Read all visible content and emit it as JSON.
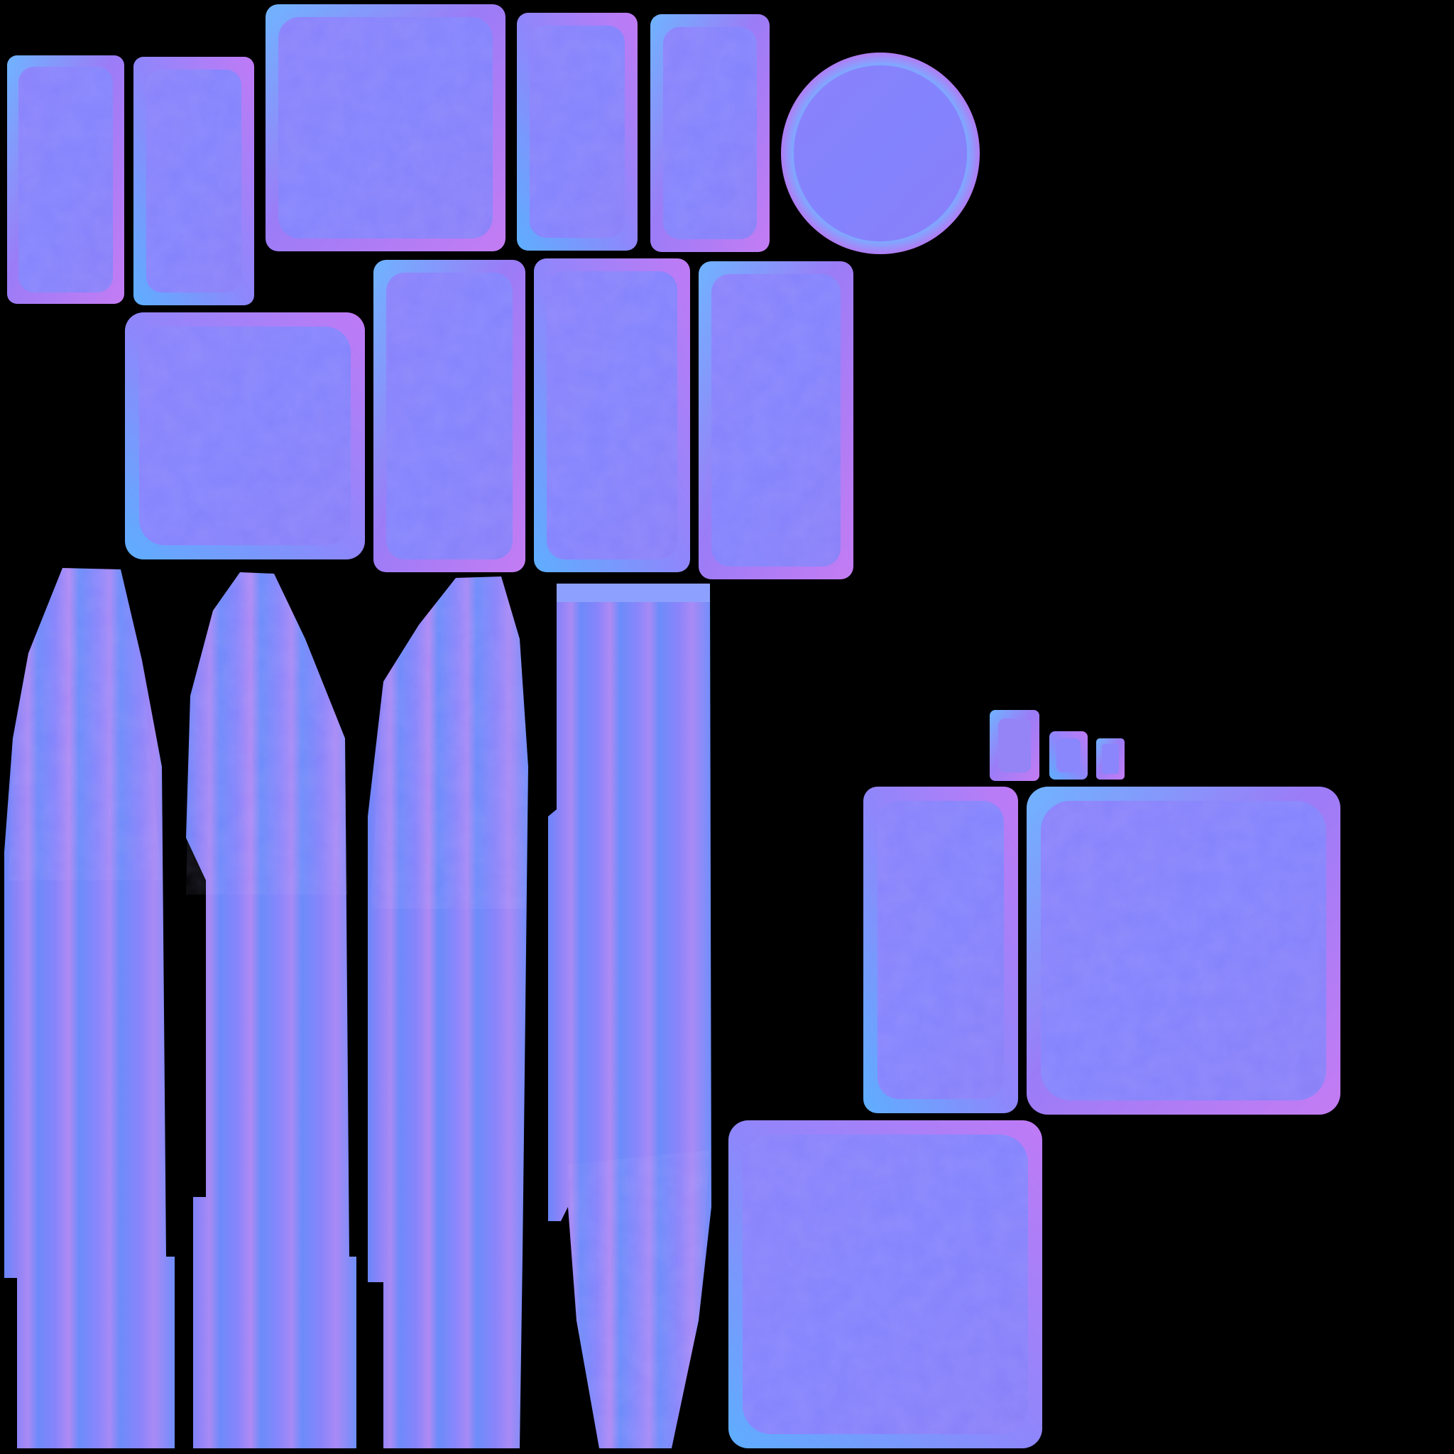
{
  "texture": {
    "kind": "normal-map",
    "background": "#000000",
    "colors": {
      "base": "#8080ff",
      "face": "#8585fb",
      "bevel_cyan": "#5fa8ff",
      "bevel_magenta": "#c07af5",
      "bevel_light": "#7fd8ff",
      "stripe_dark": "#6a86fa",
      "stripe_light": "#a38bf5"
    }
  }
}
